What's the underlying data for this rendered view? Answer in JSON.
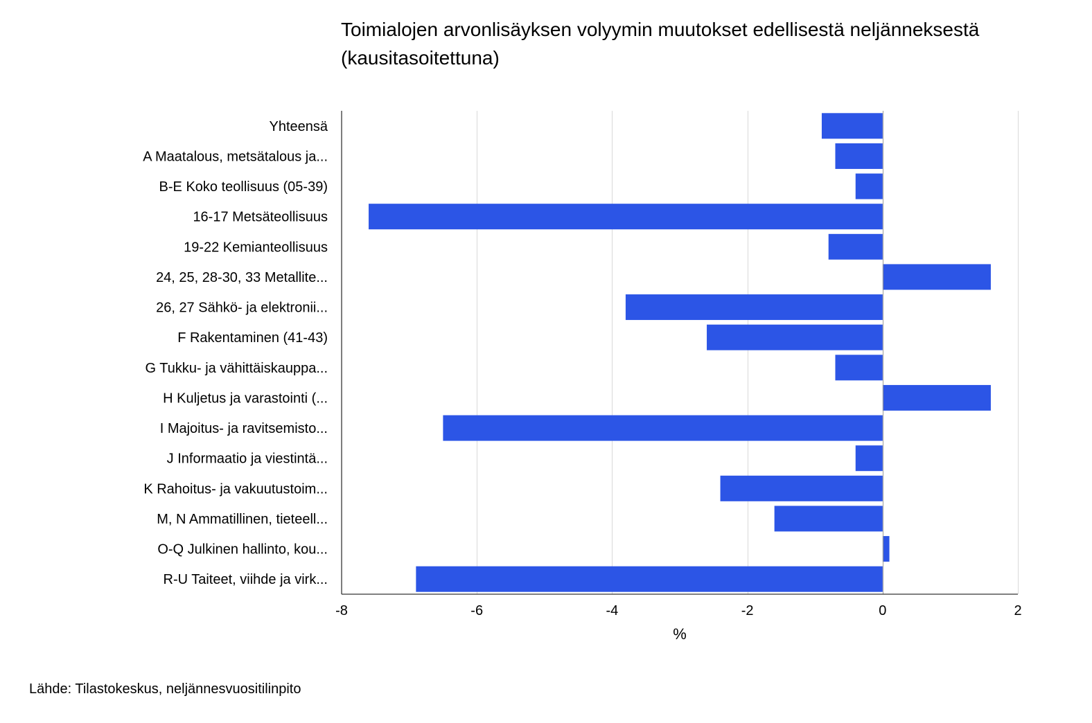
{
  "chart_data": {
    "type": "bar",
    "orientation": "horizontal",
    "title": "Toimialojen arvonlisäyksen volyymin muutokset edellisestä neljänneksestä",
    "subtitle": "(kausitasoitettuna)",
    "xlabel": "%",
    "ylabel": "",
    "xlim": [
      -8,
      2
    ],
    "x_ticks": [
      -8,
      -6,
      -4,
      -2,
      0,
      2
    ],
    "grid": true,
    "legend": "none",
    "bar_color": "#2c55e6",
    "categories": [
      "Yhteensä",
      "A Maatalous, metsätalous ja...",
      "B-E Koko teollisuus (05-39)",
      "16-17 Metsäteollisuus",
      "19-22 Kemianteollisuus",
      "24, 25, 28-30, 33 Metallite...",
      "26, 27 Sähkö- ja elektronii...",
      "F Rakentaminen (41-43)",
      "G Tukku- ja vähittäiskauppa...",
      "H Kuljetus ja varastointi (...",
      "I Majoitus- ja ravitsemisto...",
      "J Informaatio ja viestintä...",
      "K Rahoitus- ja vakuutustoim...",
      "M, N Ammatillinen, tieteell...",
      "O-Q  Julkinen hallinto, kou...",
      "R-U Taiteet, viihde ja virk..."
    ],
    "values": [
      -0.9,
      -0.7,
      -0.4,
      -7.6,
      -0.8,
      1.6,
      -3.8,
      -2.6,
      -0.7,
      1.6,
      -6.5,
      -0.4,
      -2.4,
      -1.6,
      0.1,
      -6.9
    ]
  },
  "source": "Lähde: Tilastokeskus, neljännesvuositilinpito"
}
